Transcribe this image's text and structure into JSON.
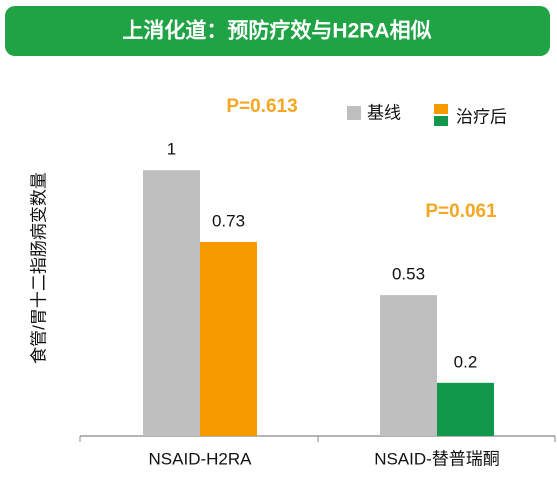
{
  "chart_data": {
    "type": "bar",
    "title": "上消化道：预防疗效与H2RA相似",
    "y_label": "食管/胃十二指肠病变数量",
    "categories": [
      "NSAID-H2RA",
      "NSAID-替普瑞酮"
    ],
    "series": [
      {
        "name": "基线",
        "color": "#bfbfbf",
        "values": [
          1,
          0.53
        ]
      },
      {
        "name": "治疗后",
        "colors": [
          "#f79a00",
          "#11984b"
        ],
        "values": [
          0.73,
          0.2
        ]
      }
    ],
    "annotations": [
      "P=0.613",
      "P=0.061"
    ],
    "annotation_color": "#f5a623",
    "ylim": [
      0,
      1.2
    ]
  }
}
